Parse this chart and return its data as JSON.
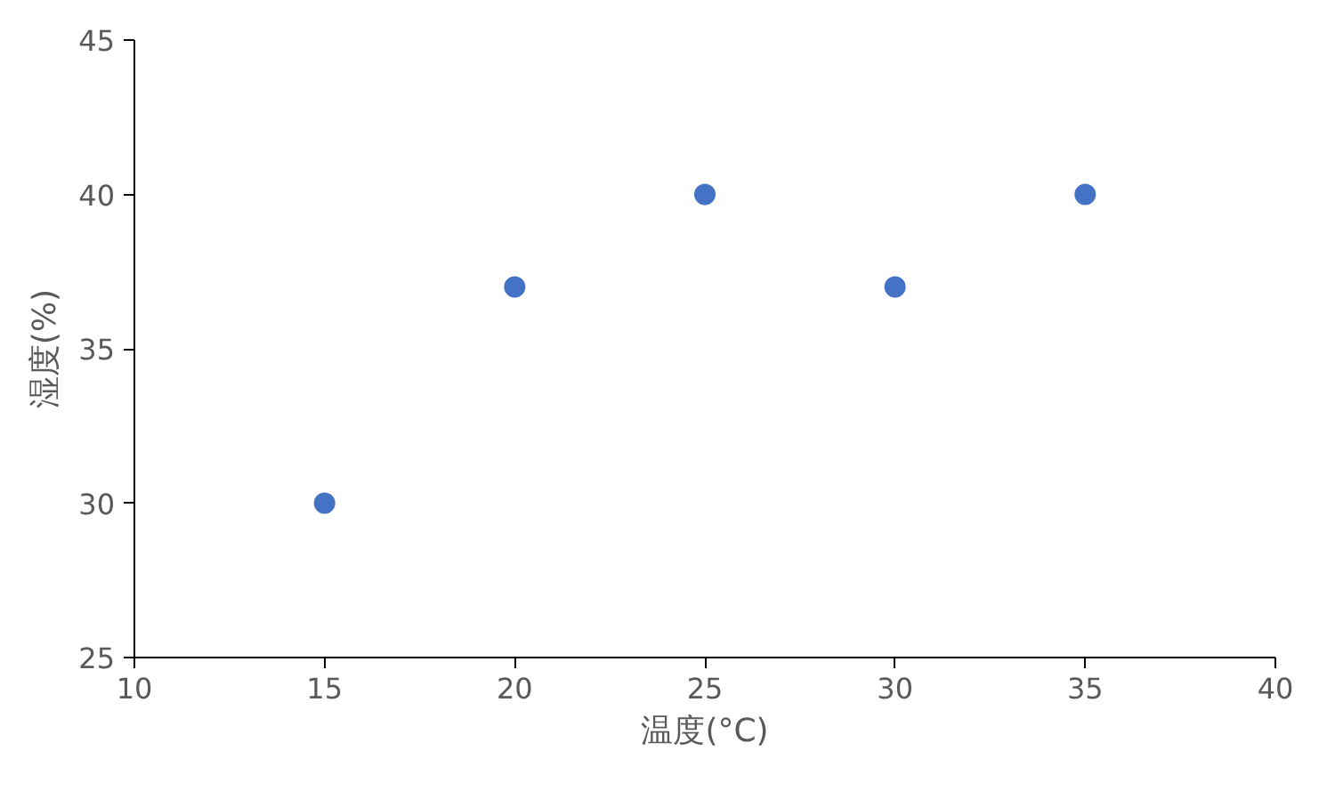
{
  "chart_data": {
    "type": "scatter",
    "xlabel": "温度(°C)",
    "ylabel": "湿度(%)",
    "x": [
      15,
      20,
      25,
      30,
      35
    ],
    "values": [
      30,
      37,
      40,
      37,
      40
    ],
    "color": "#4472c4",
    "xlim": [
      10,
      40
    ],
    "xticks": [
      10,
      15,
      20,
      25,
      30,
      35,
      40
    ],
    "ylim": [
      25,
      45
    ],
    "yticks": [
      25,
      30,
      35,
      40,
      45
    ],
    "grid": false,
    "marker": "circle"
  }
}
